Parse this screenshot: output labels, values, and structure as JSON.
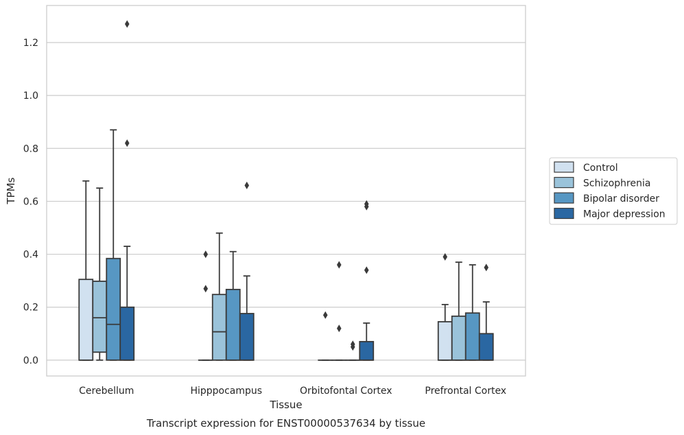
{
  "chart_data": {
    "type": "box",
    "title": "",
    "caption": "Transcript expression for ENST00000537634 by tissue",
    "xlabel": "Tissue",
    "ylabel": "TPMs",
    "ylim": [
      -0.06,
      1.34
    ],
    "yticks": [
      0.0,
      0.2,
      0.4,
      0.6,
      0.8,
      1.0,
      1.2
    ],
    "ytick_labels": [
      "0.0",
      "0.2",
      "0.4",
      "0.6",
      "0.8",
      "1.0",
      "1.2"
    ],
    "grid": "horizontal",
    "legend_position": "right",
    "categories": [
      "Cerebellum",
      "Hipppocampus",
      "Orbitofontal Cortex",
      "Prefrontal Cortex"
    ],
    "series": [
      {
        "name": "Control",
        "color": "#d1e1f0",
        "boxes": [
          {
            "min": 0.0,
            "q1": 0.0,
            "median": 0.0,
            "q3": 0.305,
            "max": 0.677,
            "outliers": []
          },
          {
            "min": 0.0,
            "q1": 0.0,
            "median": 0.0,
            "q3": 0.0,
            "max": 0.0,
            "outliers": [
              0.27,
              0.4
            ]
          },
          {
            "min": 0.0,
            "q1": 0.0,
            "median": 0.0,
            "q3": 0.0,
            "max": 0.0,
            "outliers": [
              0.17
            ]
          },
          {
            "min": 0.0,
            "q1": 0.0,
            "median": 0.0,
            "q3": 0.145,
            "max": 0.21,
            "outliers": [
              0.39
            ]
          }
        ]
      },
      {
        "name": "Schizophrenia",
        "color": "#9ac3da",
        "boxes": [
          {
            "min": 0.0,
            "q1": 0.03,
            "median": 0.16,
            "q3": 0.298,
            "max": 0.65,
            "outliers": []
          },
          {
            "min": 0.0,
            "q1": 0.0,
            "median": 0.107,
            "q3": 0.248,
            "max": 0.48,
            "outliers": []
          },
          {
            "min": 0.0,
            "q1": 0.0,
            "median": 0.0,
            "q3": 0.0,
            "max": 0.0,
            "outliers": [
              0.12,
              0.36
            ]
          },
          {
            "min": 0.0,
            "q1": 0.0,
            "median": 0.0,
            "q3": 0.166,
            "max": 0.37,
            "outliers": []
          }
        ]
      },
      {
        "name": "Bipolar disorder",
        "color": "#5797c3",
        "boxes": [
          {
            "min": 0.0,
            "q1": 0.0,
            "median": 0.135,
            "q3": 0.384,
            "max": 0.87,
            "outliers": []
          },
          {
            "min": 0.0,
            "q1": 0.0,
            "median": 0.0,
            "q3": 0.267,
            "max": 0.41,
            "outliers": []
          },
          {
            "min": 0.0,
            "q1": 0.0,
            "median": 0.0,
            "q3": 0.0,
            "max": 0.0,
            "outliers": [
              0.05,
              0.06
            ]
          },
          {
            "min": 0.0,
            "q1": 0.0,
            "median": 0.0,
            "q3": 0.178,
            "max": 0.36,
            "outliers": []
          }
        ]
      },
      {
        "name": "Major depression",
        "color": "#2a67a2",
        "boxes": [
          {
            "min": 0.0,
            "q1": 0.0,
            "median": 0.0,
            "q3": 0.2,
            "max": 0.43,
            "outliers": [
              0.82,
              1.27
            ]
          },
          {
            "min": 0.0,
            "q1": 0.0,
            "median": 0.0,
            "q3": 0.176,
            "max": 0.318,
            "outliers": [
              0.66
            ]
          },
          {
            "min": 0.0,
            "q1": 0.0,
            "median": 0.0,
            "q3": 0.07,
            "max": 0.14,
            "outliers": [
              0.34,
              0.58,
              0.59
            ]
          },
          {
            "min": 0.0,
            "q1": 0.0,
            "median": 0.0,
            "q3": 0.1,
            "max": 0.22,
            "outliers": [
              0.35
            ]
          }
        ]
      }
    ]
  }
}
